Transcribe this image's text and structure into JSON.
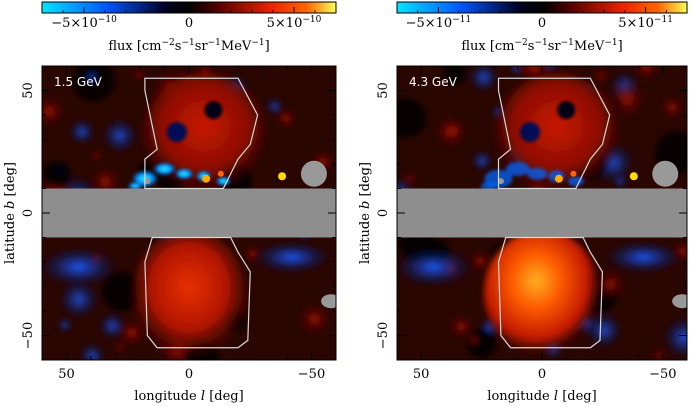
{
  "chart_data": [
    {
      "type": "heatmap",
      "panel_label": "1.5 GeV",
      "colorbar": {
        "label_main": "flux [cm",
        "label_exp1": "−2",
        "label_mid1": "s",
        "label_exp2": "−1",
        "label_mid2": "sr",
        "label_exp3": "−1",
        "label_mid3": "MeV",
        "label_exp4": "−1",
        "label_end": "]",
        "range": [
          -7e-10,
          7e-10
        ],
        "ticks": [
          {
            "value": -5e-10,
            "mantissa": "−5×10",
            "exponent": "−10"
          },
          {
            "value": 0,
            "mantissa": "0",
            "exponent": ""
          },
          {
            "value": 5e-10,
            "mantissa": "5×10",
            "exponent": "−10"
          }
        ],
        "colors": [
          "#00e5ff",
          "#0044ff",
          "#000000",
          "#cc1100",
          "#ff3300",
          "#ffff44"
        ]
      },
      "xlabel_main": "longitude ",
      "xlabel_var": "l",
      "xlabel_unit": " [deg]",
      "ylabel_main": "latitude ",
      "ylabel_var": "b",
      "ylabel_unit": " [deg]",
      "xlim": [
        60,
        -60
      ],
      "ylim": [
        -60,
        60
      ],
      "xticks": [
        {
          "value": 50,
          "label": "50"
        },
        {
          "value": 0,
          "label": "0"
        },
        {
          "value": -50,
          "label": "−50"
        }
      ],
      "yticks": [
        {
          "value": 50,
          "label": "50"
        },
        {
          "value": 0,
          "label": "0"
        },
        {
          "value": -50,
          "label": "−50"
        }
      ],
      "masked_band_b": [
        -10,
        10
      ]
    },
    {
      "type": "heatmap",
      "panel_label": "4.3 GeV",
      "colorbar": {
        "label_main": "flux [cm",
        "label_exp1": "−2",
        "label_mid1": "s",
        "label_exp2": "−1",
        "label_mid2": "sr",
        "label_exp3": "−1",
        "label_mid3": "MeV",
        "label_exp4": "−1",
        "label_end": "]",
        "range": [
          -7e-11,
          7e-11
        ],
        "ticks": [
          {
            "value": -5e-11,
            "mantissa": "−5×10",
            "exponent": "−11"
          },
          {
            "value": 0,
            "mantissa": "0",
            "exponent": ""
          },
          {
            "value": 5e-11,
            "mantissa": "5×10",
            "exponent": "−11"
          }
        ],
        "colors": [
          "#00e5ff",
          "#0044ff",
          "#000000",
          "#cc1100",
          "#ff3300",
          "#ffff44"
        ]
      },
      "xlabel_main": "longitude ",
      "xlabel_var": "l",
      "xlabel_unit": " [deg]",
      "ylabel_main": "latitude ",
      "ylabel_var": "b",
      "ylabel_unit": " [deg]",
      "xlim": [
        60,
        -60
      ],
      "ylim": [
        -60,
        60
      ],
      "xticks": [
        {
          "value": 50,
          "label": "50"
        },
        {
          "value": 0,
          "label": "0"
        },
        {
          "value": -50,
          "label": "−50"
        }
      ],
      "yticks": [
        {
          "value": 50,
          "label": "50"
        },
        {
          "value": 0,
          "label": "0"
        },
        {
          "value": -50,
          "label": "−50"
        }
      ],
      "masked_band_b": [
        -10,
        10
      ]
    }
  ]
}
